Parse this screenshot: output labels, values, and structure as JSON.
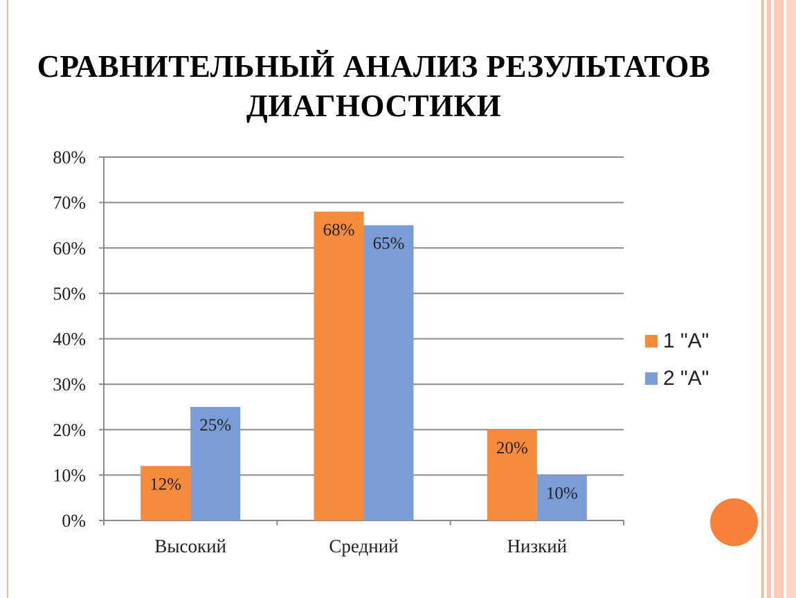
{
  "title": "СРАВНИТЕЛЬНЫЙ АНАЛИЗ РЕЗУЛЬТАТОВ ДИАГНОСТИКИ",
  "chart_data": {
    "type": "bar",
    "title": "СРАВНИТЕЛЬНЫЙ АНАЛИЗ РЕЗУЛЬТАТОВ ДИАГНОСТИКИ",
    "categories": [
      "Высокий",
      "Средний",
      "Низкий"
    ],
    "series": [
      {
        "name": "1 \"А\"",
        "values": [
          12,
          68,
          20
        ],
        "labels": [
          "12%",
          "68%",
          "20%"
        ],
        "color": "#f68b3c"
      },
      {
        "name": "2 \"А\"",
        "values": [
          25,
          65,
          10
        ],
        "labels": [
          "25%",
          "65%",
          "10%"
        ],
        "color": "#7a9dd8"
      }
    ],
    "y_ticks": [
      "0%",
      "10%",
      "20%",
      "30%",
      "40%",
      "50%",
      "60%",
      "70%",
      "80%"
    ],
    "ylim": [
      0,
      80
    ],
    "grid": true,
    "legend_position": "right"
  },
  "decor": {
    "accent_color": "#f7803a",
    "frame_color": "#f5b9a0"
  }
}
